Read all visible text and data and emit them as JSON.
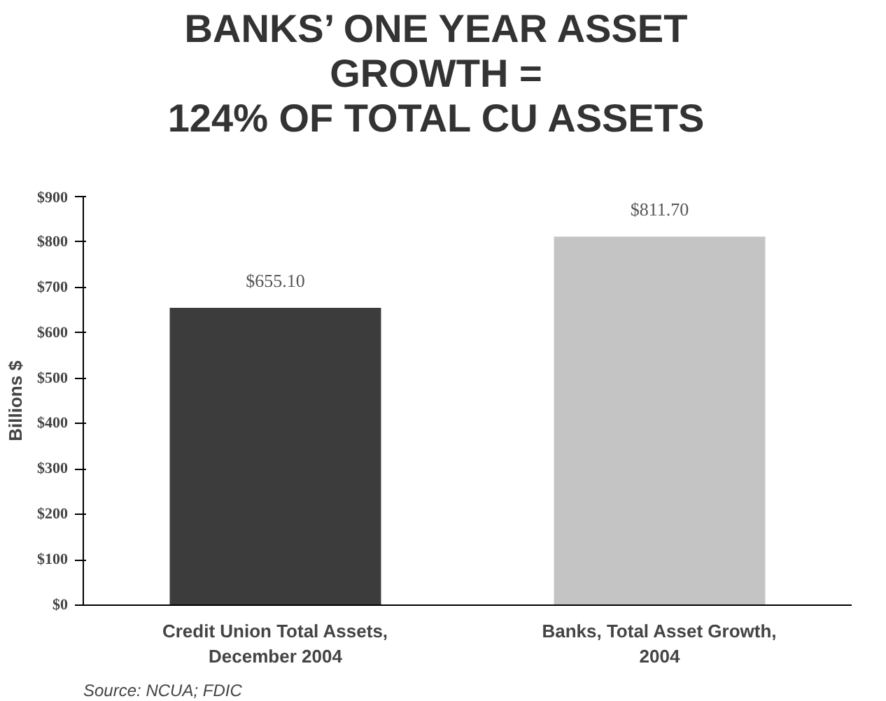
{
  "chart_data": {
    "type": "bar",
    "title": "BANKS’ ONE YEAR ASSET\nGROWTH =\n124% OF TOTAL CU ASSETS",
    "ylabel": "Billions $",
    "categories": [
      "Credit Union Total Assets,\nDecember 2004",
      "Banks, Total Asset Growth,\n2004"
    ],
    "values": [
      655.1,
      811.7
    ],
    "colors": [
      "#3c3c3c",
      "#c4c4c4"
    ],
    "value_labels": [
      "$655.10",
      "$811.70"
    ],
    "ylim": [
      0,
      900
    ],
    "yticks": [
      {
        "value": 0,
        "label": "$0"
      },
      {
        "value": 100,
        "label": "$100"
      },
      {
        "value": 200,
        "label": "$200"
      },
      {
        "value": 300,
        "label": "$300"
      },
      {
        "value": 400,
        "label": "$400"
      },
      {
        "value": 500,
        "label": "$500"
      },
      {
        "value": 600,
        "label": "$600"
      },
      {
        "value": 700,
        "label": "$700"
      },
      {
        "value": 800,
        "label": "$800"
      },
      {
        "value": 900,
        "label": "$900"
      }
    ],
    "grid": false,
    "annotations": [
      "Source: NCUA; FDIC"
    ]
  }
}
